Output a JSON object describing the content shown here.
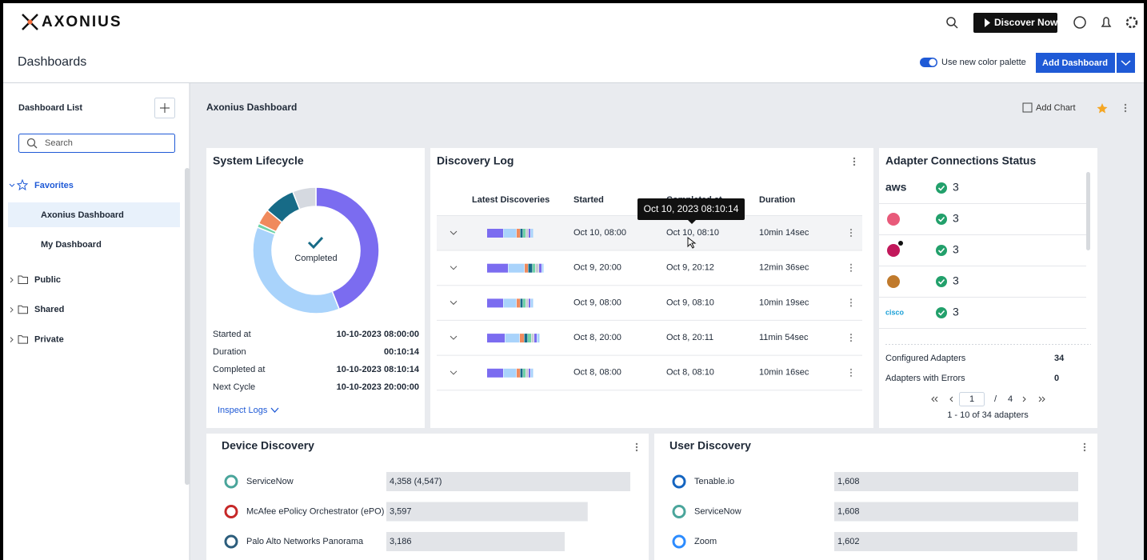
{
  "header": {
    "logo": "AXONIUS",
    "discover_button": "Discover Now",
    "page_title": "Dashboards",
    "palette_toggle": "Use new color palette",
    "add_dashboard_button": "Add Dashboard"
  },
  "sidebar": {
    "title": "Dashboard List",
    "search_placeholder": "Search",
    "favorites": {
      "label": "Favorites",
      "items": [
        "Axonius Dashboard",
        "My Dashboard"
      ]
    },
    "folders": [
      "Public",
      "Shared",
      "Private"
    ]
  },
  "dashboard": {
    "title": "Axonius Dashboard",
    "add_chart": "Add Chart"
  },
  "system_lifecycle": {
    "title": "System Lifecycle",
    "status": "Completed",
    "donut": {
      "values": [
        44,
        37,
        1,
        4,
        8,
        6
      ],
      "colors": [
        "#7b6cf0",
        "#a9d3fb",
        "#6fd3a8",
        "#f08a5d",
        "#176b87",
        "#d5d9e0"
      ]
    },
    "details": [
      {
        "label": "Started at",
        "value": "10-10-2023 08:00:00"
      },
      {
        "label": "Duration",
        "value": "00:10:14"
      },
      {
        "label": "Completed at",
        "value": "10-10-2023 08:10:14"
      },
      {
        "label": "Next Cycle",
        "value": "10-10-2023 20:00:00"
      }
    ],
    "inspect_logs": "Inspect Logs"
  },
  "discovery_log": {
    "title": "Discovery Log",
    "columns": [
      "Latest Discoveries",
      "Started",
      "Completed at",
      "Duration"
    ],
    "tooltip": "Oct 10, 2023 08:10:14",
    "rows": [
      {
        "started": "Oct 10, 08:00",
        "completed": "Oct 10, 08:10",
        "duration": "10min 14sec"
      },
      {
        "started": "Oct 9, 20:00",
        "completed": "Oct 9, 20:12",
        "duration": "12min 36sec"
      },
      {
        "started": "Oct 9, 08:00",
        "completed": "Oct 9, 08:10",
        "duration": "10min 19sec"
      },
      {
        "started": "Oct 8, 20:00",
        "completed": "Oct 8, 20:11",
        "duration": "11min 54sec"
      },
      {
        "started": "Oct 8, 08:00",
        "completed": "Oct 8, 08:10",
        "duration": "10min 16sec"
      }
    ]
  },
  "adapter_connections": {
    "title": "Adapter Connections Status",
    "adapters": [
      {
        "logo": "aws",
        "count": 3
      },
      {
        "count": 3
      },
      {
        "count": 3
      },
      {
        "count": 3
      },
      {
        "logo": "cisco",
        "count": 3
      }
    ],
    "summary": [
      {
        "label": "Configured Adapters",
        "value": 34
      },
      {
        "label": "Adapters with Errors",
        "value": 0
      }
    ],
    "pagination": {
      "page": 1,
      "separator": "/",
      "total_pages": 4,
      "range": "1 - 10 of 34 adapters"
    }
  },
  "device_discovery": {
    "title": "Device Discovery",
    "rows": [
      {
        "name": "ServiceNow",
        "value": 4358,
        "value_label": "4,358 (4,547)"
      },
      {
        "name": "McAfee ePolicy Orchestrator (ePO)",
        "value": 3597,
        "value_label": "3,597"
      },
      {
        "name": "Palo Alto Networks Panorama",
        "value": 3186,
        "value_label": "3,186"
      }
    ]
  },
  "user_discovery": {
    "title": "User Discovery",
    "rows": [
      {
        "name": "Tenable.io",
        "value": 1608,
        "value_label": "1,608"
      },
      {
        "name": "ServiceNow",
        "value": 1608,
        "value_label": "1,608"
      },
      {
        "name": "Zoom",
        "value": 1602,
        "value_label": "1,602"
      }
    ]
  }
}
